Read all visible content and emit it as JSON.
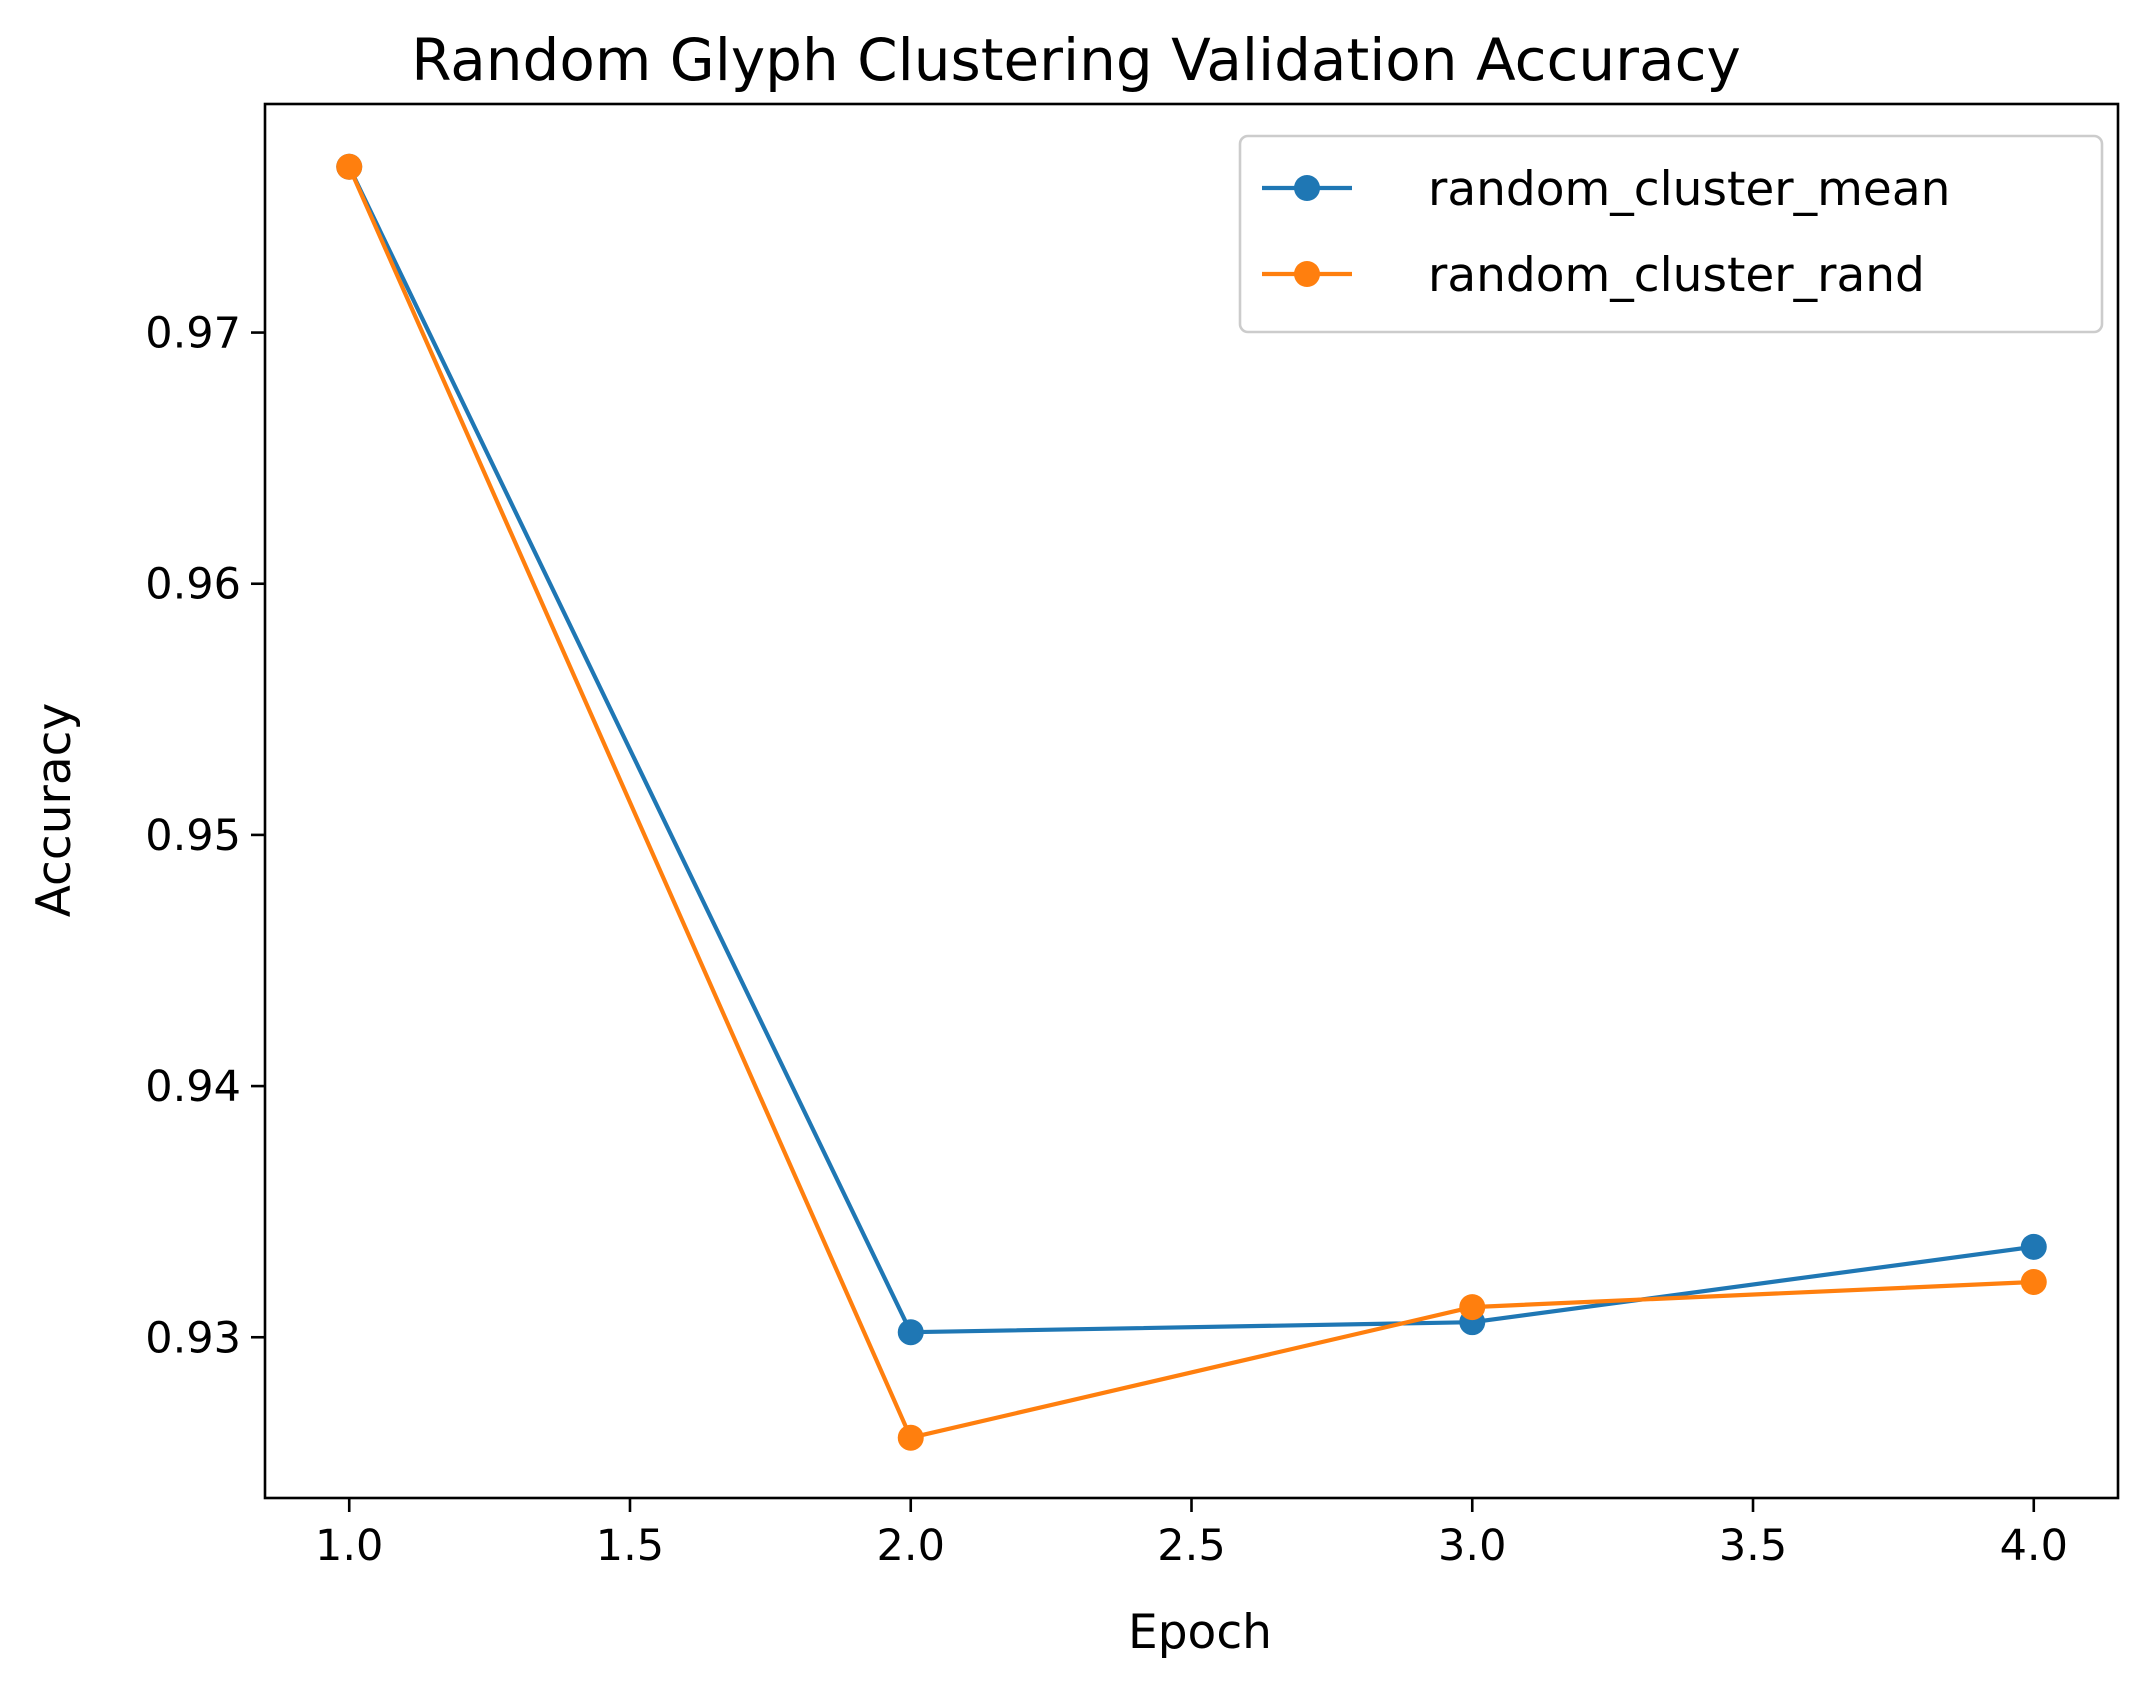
{
  "chart_data": {
    "type": "line",
    "title": "Random Glyph Clustering Validation Accuracy",
    "xlabel": "Epoch",
    "ylabel": "Accuracy",
    "xlim": [
      0.85,
      4.15
    ],
    "ylim": [
      0.9236,
      0.9791
    ],
    "xticks": [
      1.0,
      1.5,
      2.0,
      2.5,
      3.0,
      3.5,
      4.0
    ],
    "xtick_labels": [
      "1.0",
      "1.5",
      "2.0",
      "2.5",
      "3.0",
      "3.5",
      "4.0"
    ],
    "yticks": [
      0.93,
      0.94,
      0.95,
      0.96,
      0.97
    ],
    "ytick_labels": [
      "0.93",
      "0.94",
      "0.95",
      "0.96",
      "0.97"
    ],
    "grid": false,
    "legend_position": "top-right",
    "x": [
      1,
      2,
      3,
      4
    ],
    "series": [
      {
        "name": "random_cluster_mean",
        "color": "#1f77b4",
        "values": [
          0.9766,
          0.9302,
          0.9306,
          0.9336
        ]
      },
      {
        "name": "random_cluster_rand",
        "color": "#ff7f0e",
        "values": [
          0.9766,
          0.926,
          0.9312,
          0.9322
        ]
      }
    ]
  }
}
